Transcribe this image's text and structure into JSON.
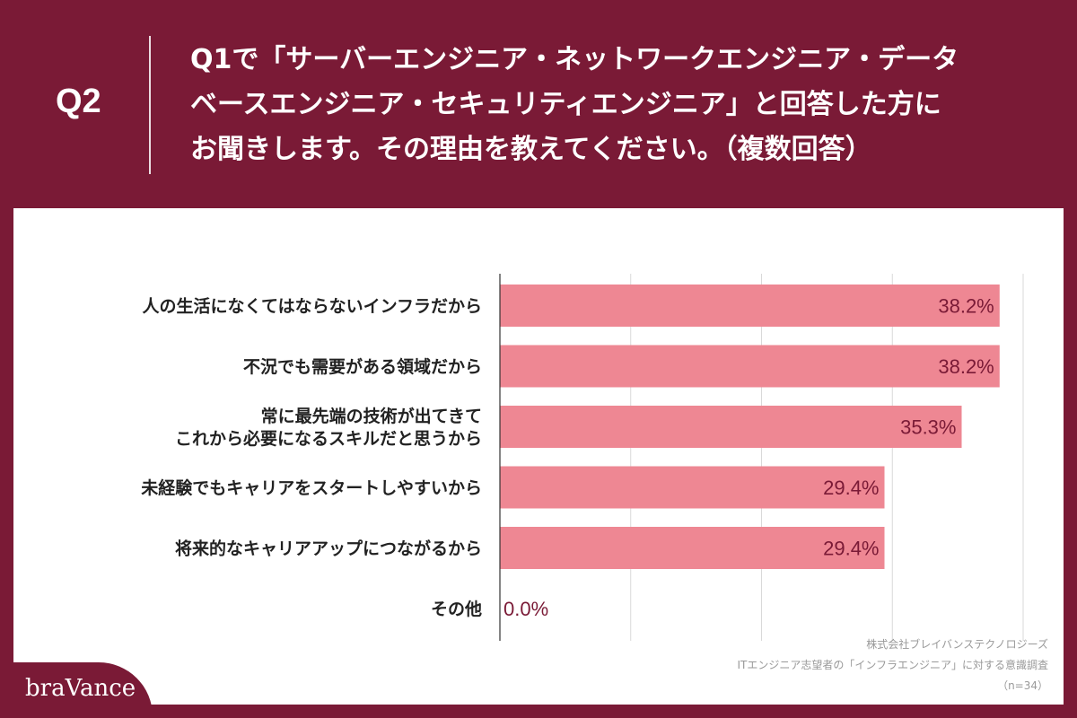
{
  "header": {
    "question_number": "Q2",
    "question_lines": [
      "Q1で「サーバーエンジニア・ネットワークエンジニア・データ",
      "ベースエンジニア・セキュリティエンジニア」と回答した方に",
      "お聞きします。その理由を教えてください。（複数回答）"
    ]
  },
  "chart_data": {
    "type": "bar",
    "orientation": "horizontal",
    "categories": [
      [
        "人の生活になくてはならないインフラだから"
      ],
      [
        "不況でも需要がある領域だから"
      ],
      [
        "常に最先端の技術が出てきて",
        "これから必要になるスキルだと思うから"
      ],
      [
        "未経験でもキャリアをスタートしやすいから"
      ],
      [
        "将来的なキャリアアップにつながるから"
      ],
      [
        "その他"
      ]
    ],
    "values": [
      38.2,
      38.2,
      35.3,
      29.4,
      29.4,
      0.0
    ],
    "value_labels": [
      "38.2%",
      "38.2%",
      "35.3%",
      "29.4%",
      "29.4%",
      "0.0%"
    ],
    "xlim": [
      0,
      40
    ],
    "grid": true,
    "bar_color": "#ee8793",
    "label_color": "#7a1a36"
  },
  "source": {
    "lines": [
      "株式会社ブレイバンステクノロジーズ",
      "ITエンジニア志望者の「インフラエンジニア」に対する意識調査",
      "（n=34）"
    ]
  },
  "brand": {
    "logo_text": "braVance"
  },
  "colors": {
    "background": "#7a1a36",
    "panel": "#ffffff",
    "bar": "#ee8793"
  }
}
